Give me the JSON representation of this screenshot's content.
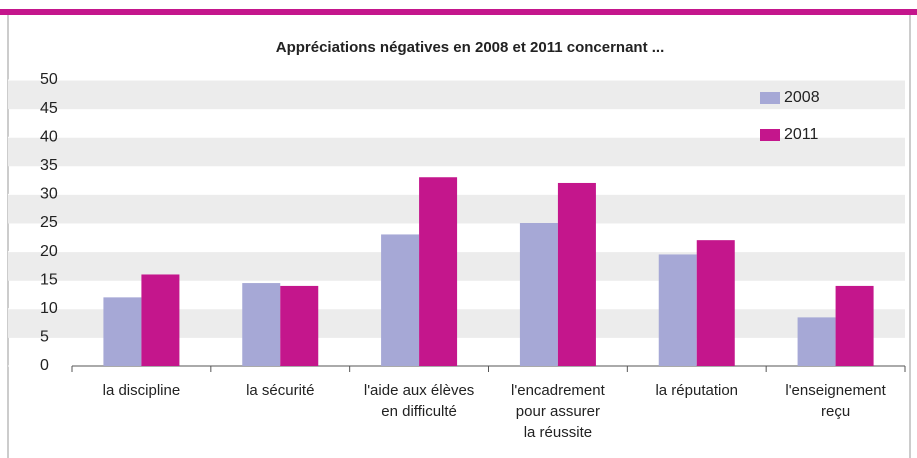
{
  "chart_data": {
    "type": "bar",
    "title": "Appréciations négatives en 2008 et 2011 concernant ...",
    "categories": [
      "la discipline",
      "la sécurité",
      "l'aide aux élèves\nen difficulté",
      "l'encadrement\npour assurer\nla réussite",
      "la réputation",
      "l'enseignement\nreçu"
    ],
    "series": [
      {
        "name": "2008",
        "color": "#a6a8d6",
        "values": [
          12,
          14.5,
          23,
          25,
          19.5,
          8.5
        ]
      },
      {
        "name": "2011",
        "color": "#c4168c",
        "values": [
          16,
          14,
          33,
          32,
          22,
          14
        ]
      }
    ],
    "ylim": [
      0,
      50
    ],
    "yticks": [
      0,
      5,
      10,
      15,
      20,
      25,
      30,
      35,
      40,
      45,
      50
    ],
    "legend": "top-right"
  }
}
